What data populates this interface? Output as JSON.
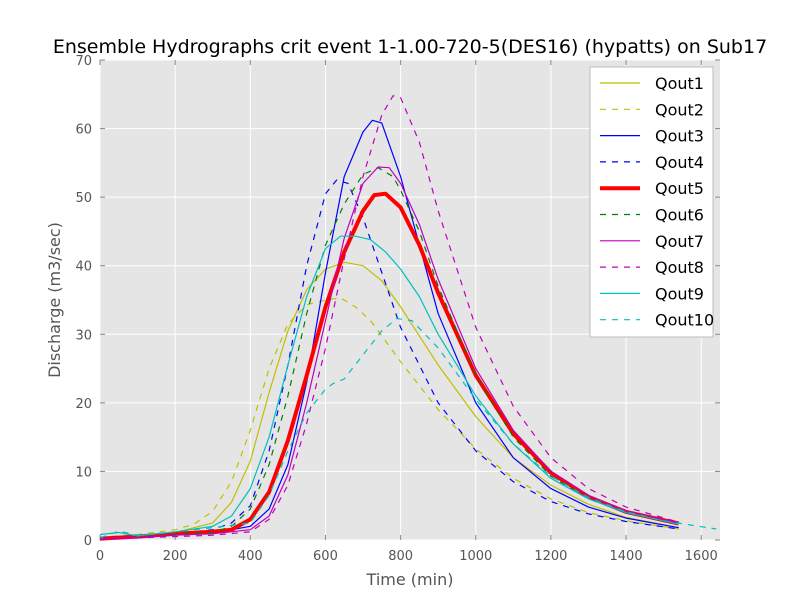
{
  "chart_data": {
    "type": "line",
    "title": "Ensemble Hydrographs crit event 1-1.00-720-5(DES16) (hypatts) on Sub17",
    "xlabel": "Time (min)",
    "ylabel": "Discharge (m3/sec)",
    "xlim": [
      0,
      1650
    ],
    "ylim": [
      0,
      70
    ],
    "xticks": [
      0,
      200,
      400,
      600,
      800,
      1000,
      1200,
      1400,
      1600
    ],
    "yticks": [
      0,
      10,
      20,
      30,
      40,
      50,
      60,
      70
    ],
    "grid": true,
    "legend_position": "top-right",
    "background": "#e5e5e5",
    "series": [
      {
        "name": "Qout1",
        "color": "#bfbf00",
        "dash": "solid",
        "width": 1.2,
        "x": [
          0,
          100,
          200,
          300,
          350,
          400,
          450,
          500,
          550,
          600,
          650,
          700,
          750,
          800,
          900,
          1000,
          1100,
          1200,
          1300,
          1400,
          1540
        ],
        "y": [
          0.3,
          0.6,
          1.1,
          2.5,
          5.5,
          11.5,
          21.5,
          30.5,
          36.5,
          39.5,
          40.5,
          40,
          37.8,
          34,
          25.5,
          18,
          12,
          8,
          5.2,
          3.3,
          1.8
        ]
      },
      {
        "name": "Qout2",
        "color": "#bfbf00",
        "dash": "dashed",
        "width": 1.2,
        "x": [
          0,
          100,
          200,
          250,
          300,
          350,
          400,
          450,
          500,
          550,
          600,
          640,
          680,
          720,
          760,
          800,
          900,
          1000,
          1100,
          1200,
          1300,
          1400,
          1540
        ],
        "y": [
          0.4,
          0.8,
          1.5,
          2.3,
          4.2,
          8.5,
          16,
          25,
          31.5,
          34.3,
          35,
          35.3,
          34,
          32,
          29,
          26,
          19,
          13.3,
          9,
          6,
          4,
          2.8,
          1.6
        ]
      },
      {
        "name": "Qout3",
        "color": "#0000ff",
        "dash": "solid",
        "width": 1.2,
        "x": [
          0,
          100,
          200,
          300,
          400,
          450,
          500,
          550,
          600,
          650,
          700,
          725,
          750,
          800,
          850,
          900,
          1000,
          1100,
          1200,
          1300,
          1400,
          1540
        ],
        "y": [
          0.2,
          0.5,
          0.8,
          1.0,
          2,
          4.5,
          11,
          23,
          39,
          53,
          59.5,
          61.2,
          60.8,
          53,
          43,
          33,
          20,
          12,
          7.5,
          4.8,
          3.2,
          1.8
        ]
      },
      {
        "name": "Qout4",
        "color": "#0000ff",
        "dash": "dashed",
        "width": 1.2,
        "x": [
          0,
          100,
          200,
          300,
          350,
          400,
          450,
          500,
          550,
          600,
          630,
          660,
          700,
          750,
          800,
          900,
          1000,
          1100,
          1200,
          1300,
          1400,
          1540
        ],
        "y": [
          0.3,
          0.5,
          0.9,
          1.5,
          2.5,
          5,
          13,
          25.5,
          40,
          50.5,
          52.5,
          52,
          47,
          39,
          31,
          20,
          13,
          8.5,
          5.6,
          3.8,
          2.7,
          1.6
        ]
      },
      {
        "name": "Qout5",
        "color": "#ff0000",
        "dash": "solid",
        "width": 4,
        "x": [
          0,
          100,
          200,
          300,
          350,
          400,
          450,
          500,
          550,
          600,
          650,
          700,
          730,
          760,
          800,
          850,
          900,
          1000,
          1100,
          1200,
          1300,
          1400,
          1540
        ],
        "y": [
          0.2,
          0.5,
          0.9,
          1.2,
          1.5,
          3,
          7,
          14.5,
          24,
          34,
          42,
          48,
          50.3,
          50.5,
          48.5,
          43,
          36,
          24,
          15.5,
          9.8,
          6.3,
          4.1,
          2.4
        ]
      },
      {
        "name": "Qout6",
        "color": "#008000",
        "dash": "dashed",
        "width": 1.2,
        "x": [
          0,
          100,
          200,
          300,
          350,
          400,
          450,
          500,
          550,
          600,
          650,
          700,
          740,
          780,
          800,
          850,
          900,
          1000,
          1100,
          1200,
          1300,
          1400,
          1540
        ],
        "y": [
          0.2,
          0.4,
          0.8,
          1.1,
          2,
          4.5,
          11,
          21,
          33,
          43,
          49,
          53.3,
          54.3,
          53,
          51,
          45,
          37,
          24,
          15,
          9.3,
          6,
          4,
          2.3
        ]
      },
      {
        "name": "Qout7",
        "color": "#bf00bf",
        "dash": "solid",
        "width": 1.2,
        "x": [
          0,
          100,
          200,
          300,
          400,
          450,
          500,
          550,
          600,
          650,
          700,
          740,
          770,
          800,
          850,
          900,
          1000,
          1100,
          1200,
          1300,
          1400,
          1540
        ],
        "y": [
          0.2,
          0.4,
          0.7,
          0.9,
          1.5,
          3.5,
          9.5,
          20,
          32,
          44,
          52,
          54.4,
          54.3,
          52,
          46,
          38,
          25,
          16,
          10,
          6.5,
          4.2,
          2.5
        ]
      },
      {
        "name": "Qout8",
        "color": "#bf00bf",
        "dash": "dashed",
        "width": 1.2,
        "x": [
          0,
          100,
          200,
          300,
          400,
          450,
          500,
          550,
          600,
          650,
          700,
          750,
          780,
          800,
          850,
          900,
          1000,
          1100,
          1200,
          1300,
          1400,
          1540
        ],
        "y": [
          0.1,
          0.3,
          0.5,
          0.7,
          1.2,
          3,
          8,
          17,
          28,
          41,
          53,
          62,
          64.8,
          64.5,
          58,
          48,
          31,
          19.5,
          12,
          7.5,
          4.8,
          2.6
        ]
      },
      {
        "name": "Qout9",
        "color": "#00bfbf",
        "dash": "solid",
        "width": 1.2,
        "x": [
          0,
          50,
          100,
          200,
          300,
          350,
          400,
          450,
          500,
          550,
          600,
          640,
          680,
          720,
          760,
          800,
          850,
          900,
          1000,
          1100,
          1200,
          1300,
          1400,
          1540
        ],
        "y": [
          0.8,
          1.1,
          0.6,
          1.2,
          2,
          3.5,
          7.5,
          15,
          25.5,
          35.5,
          42.5,
          44.3,
          44.3,
          43.8,
          42,
          39.5,
          35.5,
          30,
          21,
          14,
          9,
          6,
          4,
          2.3
        ]
      },
      {
        "name": "Qout10",
        "color": "#00bfbf",
        "dash": "dashed",
        "width": 1.2,
        "x": [
          0,
          50,
          100,
          200,
          300,
          400,
          450,
          500,
          550,
          600,
          620,
          650,
          700,
          750,
          790,
          830,
          900,
          1000,
          1100,
          1200,
          1300,
          1400,
          1500,
          1640
        ],
        "y": [
          0.3,
          1.3,
          0.7,
          1.2,
          1.8,
          2.5,
          6.5,
          13,
          18.5,
          22,
          22.8,
          23.5,
          27,
          30.5,
          32.3,
          32,
          28,
          20.5,
          14,
          9.3,
          6.2,
          4.1,
          2.8,
          1.6
        ]
      }
    ]
  }
}
